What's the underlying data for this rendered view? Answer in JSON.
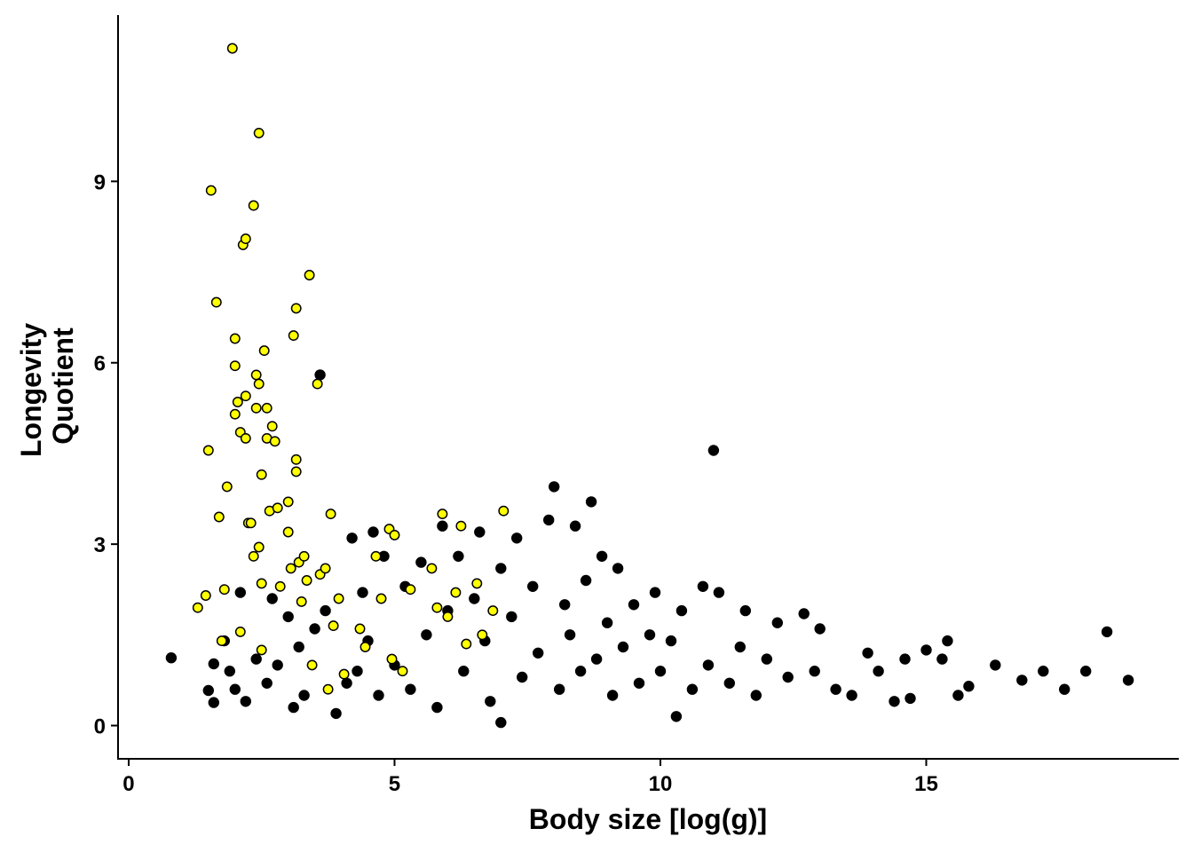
{
  "chart_data": {
    "type": "scatter",
    "xlabel": "Body size [log(g)]",
    "ylabel": [
      "Longevity",
      "Quotient"
    ],
    "xlim": [
      -0.2,
      19.75
    ],
    "ylim": [
      -0.55,
      11.75
    ],
    "x_ticks": [
      0,
      5,
      10,
      15
    ],
    "y_ticks": [
      0,
      3,
      6,
      9
    ],
    "grid": false,
    "legend": "none",
    "series": [
      {
        "color": "#000000",
        "points": [
          [
            0.8,
            1.12
          ],
          [
            1.5,
            0.58
          ],
          [
            1.6,
            0.38
          ],
          [
            1.6,
            1.02
          ],
          [
            1.8,
            1.4
          ],
          [
            1.9,
            0.9
          ],
          [
            2.0,
            0.6
          ],
          [
            2.1,
            2.2
          ],
          [
            2.2,
            0.4
          ],
          [
            2.4,
            1.1
          ],
          [
            2.6,
            0.7
          ],
          [
            2.7,
            2.1
          ],
          [
            2.8,
            1.0
          ],
          [
            3.0,
            1.8
          ],
          [
            3.1,
            0.3
          ],
          [
            3.2,
            1.3
          ],
          [
            3.3,
            0.5
          ],
          [
            3.5,
            1.6
          ],
          [
            3.6,
            5.8
          ],
          [
            3.7,
            1.9
          ],
          [
            3.9,
            0.2
          ],
          [
            4.1,
            0.7
          ],
          [
            4.2,
            3.1
          ],
          [
            4.3,
            0.9
          ],
          [
            4.4,
            2.2
          ],
          [
            4.5,
            1.4
          ],
          [
            4.6,
            3.2
          ],
          [
            4.7,
            0.5
          ],
          [
            4.8,
            2.8
          ],
          [
            5.0,
            1.0
          ],
          [
            5.2,
            2.3
          ],
          [
            5.3,
            0.6
          ],
          [
            5.5,
            2.7
          ],
          [
            5.6,
            1.5
          ],
          [
            5.8,
            0.3
          ],
          [
            5.9,
            3.3
          ],
          [
            6.0,
            1.9
          ],
          [
            6.2,
            2.8
          ],
          [
            6.3,
            0.9
          ],
          [
            6.5,
            2.1
          ],
          [
            6.6,
            3.2
          ],
          [
            6.7,
            1.4
          ],
          [
            6.8,
            0.4
          ],
          [
            7.0,
            2.6
          ],
          [
            7.0,
            0.05
          ],
          [
            7.2,
            1.8
          ],
          [
            7.3,
            3.1
          ],
          [
            7.4,
            0.8
          ],
          [
            7.6,
            2.3
          ],
          [
            7.7,
            1.2
          ],
          [
            7.9,
            3.4
          ],
          [
            8.0,
            3.95
          ],
          [
            8.1,
            0.6
          ],
          [
            8.2,
            2.0
          ],
          [
            8.3,
            1.5
          ],
          [
            8.4,
            3.3
          ],
          [
            8.5,
            0.9
          ],
          [
            8.6,
            2.4
          ],
          [
            8.7,
            3.7
          ],
          [
            8.8,
            1.1
          ],
          [
            8.9,
            2.8
          ],
          [
            9.0,
            1.7
          ],
          [
            9.1,
            0.5
          ],
          [
            9.2,
            2.6
          ],
          [
            9.3,
            1.3
          ],
          [
            9.5,
            2.0
          ],
          [
            9.6,
            0.7
          ],
          [
            9.8,
            1.5
          ],
          [
            9.9,
            2.2
          ],
          [
            10.0,
            0.9
          ],
          [
            10.2,
            1.4
          ],
          [
            10.3,
            0.15
          ],
          [
            10.4,
            1.9
          ],
          [
            10.6,
            0.6
          ],
          [
            10.8,
            2.3
          ],
          [
            10.9,
            1.0
          ],
          [
            11.0,
            4.55
          ],
          [
            11.1,
            2.2
          ],
          [
            11.3,
            0.7
          ],
          [
            11.5,
            1.3
          ],
          [
            11.6,
            1.9
          ],
          [
            11.8,
            0.5
          ],
          [
            12.0,
            1.1
          ],
          [
            12.2,
            1.7
          ],
          [
            12.4,
            0.8
          ],
          [
            12.7,
            1.85
          ],
          [
            12.9,
            0.9
          ],
          [
            13.0,
            1.6
          ],
          [
            13.3,
            0.6
          ],
          [
            13.6,
            0.5
          ],
          [
            13.9,
            1.2
          ],
          [
            14.1,
            0.9
          ],
          [
            14.4,
            0.4
          ],
          [
            14.6,
            1.1
          ],
          [
            14.7,
            0.45
          ],
          [
            15.0,
            1.25
          ],
          [
            15.3,
            1.1
          ],
          [
            15.4,
            1.4
          ],
          [
            15.6,
            0.5
          ],
          [
            15.8,
            0.65
          ],
          [
            16.3,
            1.0
          ],
          [
            16.8,
            0.75
          ],
          [
            17.2,
            0.9
          ],
          [
            17.6,
            0.6
          ],
          [
            18.0,
            0.9
          ],
          [
            18.4,
            1.55
          ],
          [
            18.8,
            0.75
          ]
        ]
      },
      {
        "color": "#ffff00",
        "stroke": "#000000",
        "points": [
          [
            1.3,
            1.95
          ],
          [
            1.45,
            2.15
          ],
          [
            1.5,
            4.55
          ],
          [
            1.55,
            8.85
          ],
          [
            1.65,
            7.0
          ],
          [
            1.7,
            3.45
          ],
          [
            1.75,
            1.4
          ],
          [
            1.8,
            2.25
          ],
          [
            1.85,
            3.95
          ],
          [
            1.95,
            11.2
          ],
          [
            2.0,
            6.4
          ],
          [
            2.0,
            5.95
          ],
          [
            2.0,
            5.15
          ],
          [
            2.05,
            5.35
          ],
          [
            2.1,
            4.85
          ],
          [
            2.1,
            1.55
          ],
          [
            2.15,
            7.95
          ],
          [
            2.2,
            8.05
          ],
          [
            2.2,
            5.45
          ],
          [
            2.2,
            4.75
          ],
          [
            2.25,
            3.35
          ],
          [
            2.3,
            3.35
          ],
          [
            2.35,
            8.6
          ],
          [
            2.35,
            2.8
          ],
          [
            2.4,
            5.8
          ],
          [
            2.4,
            5.25
          ],
          [
            2.45,
            9.8
          ],
          [
            2.45,
            5.65
          ],
          [
            2.45,
            2.95
          ],
          [
            2.5,
            4.15
          ],
          [
            2.5,
            2.35
          ],
          [
            2.5,
            1.25
          ],
          [
            2.55,
            6.2
          ],
          [
            2.6,
            5.25
          ],
          [
            2.6,
            4.75
          ],
          [
            2.65,
            3.55
          ],
          [
            2.7,
            4.95
          ],
          [
            2.75,
            4.7
          ],
          [
            2.8,
            3.6
          ],
          [
            2.85,
            2.3
          ],
          [
            3.0,
            3.7
          ],
          [
            3.0,
            3.2
          ],
          [
            3.05,
            2.6
          ],
          [
            3.1,
            6.45
          ],
          [
            3.15,
            6.9
          ],
          [
            3.15,
            4.4
          ],
          [
            3.15,
            4.2
          ],
          [
            3.2,
            2.7
          ],
          [
            3.25,
            2.05
          ],
          [
            3.3,
            2.8
          ],
          [
            3.35,
            2.4
          ],
          [
            3.4,
            7.45
          ],
          [
            3.45,
            1.0
          ],
          [
            3.55,
            5.65
          ],
          [
            3.6,
            2.5
          ],
          [
            3.7,
            2.6
          ],
          [
            3.75,
            0.6
          ],
          [
            3.8,
            3.5
          ],
          [
            3.85,
            1.65
          ],
          [
            3.95,
            2.1
          ],
          [
            4.05,
            0.85
          ],
          [
            4.35,
            1.6
          ],
          [
            4.45,
            1.3
          ],
          [
            4.65,
            2.8
          ],
          [
            4.75,
            2.1
          ],
          [
            4.9,
            3.25
          ],
          [
            4.95,
            1.1
          ],
          [
            5.0,
            3.15
          ],
          [
            5.15,
            0.9
          ],
          [
            5.3,
            2.25
          ],
          [
            5.7,
            2.6
          ],
          [
            5.8,
            1.95
          ],
          [
            5.9,
            3.5
          ],
          [
            6.0,
            1.8
          ],
          [
            6.15,
            2.2
          ],
          [
            6.25,
            3.3
          ],
          [
            6.35,
            1.35
          ],
          [
            6.55,
            2.35
          ],
          [
            6.65,
            1.5
          ],
          [
            6.85,
            1.9
          ],
          [
            7.05,
            3.55
          ]
        ]
      }
    ]
  }
}
